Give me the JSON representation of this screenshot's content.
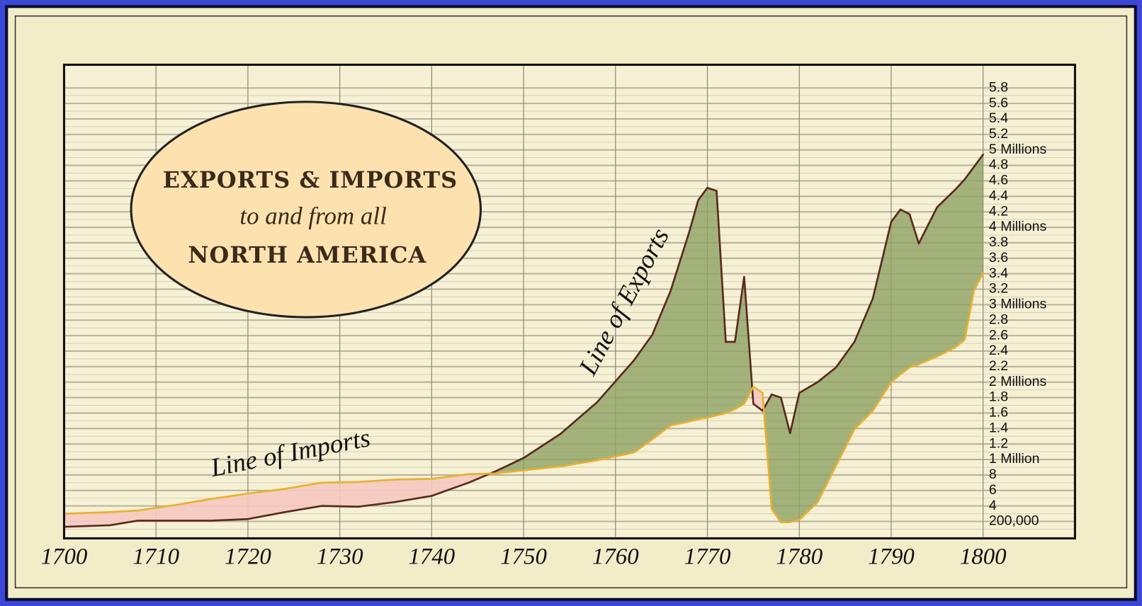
{
  "chart_data": {
    "type": "line",
    "title": [
      "EXPORTS & IMPORTS",
      "to and from all",
      "NORTH AMERICA"
    ],
    "x": [
      1700,
      1705,
      1708,
      1712,
      1716,
      1720,
      1724,
      1728,
      1732,
      1736,
      1740,
      1744,
      1747,
      1750,
      1754,
      1758,
      1762,
      1764,
      1766,
      1768,
      1769,
      1770,
      1771,
      1772,
      1773,
      1774,
      1775,
      1776,
      1777,
      1778,
      1779,
      1780,
      1782,
      1784,
      1786,
      1788,
      1790,
      1791,
      1792,
      1793,
      1795,
      1797,
      1798,
      1799,
      1800
    ],
    "series": [
      {
        "name": "Line of Exports",
        "color": "#5a2a1e",
        "values": [
          0.13,
          0.15,
          0.21,
          0.21,
          0.21,
          0.23,
          0.32,
          0.4,
          0.39,
          0.45,
          0.53,
          0.7,
          0.85,
          1.02,
          1.33,
          1.74,
          2.28,
          2.61,
          3.18,
          3.93,
          4.35,
          4.51,
          4.47,
          2.52,
          2.52,
          3.36,
          1.72,
          1.63,
          1.84,
          1.8,
          1.34,
          1.86,
          2.0,
          2.19,
          2.52,
          3.08,
          4.07,
          4.23,
          4.17,
          3.79,
          4.26,
          4.49,
          4.62,
          4.78,
          4.94
        ]
      },
      {
        "name": "Line of Imports",
        "color": "#e8b030",
        "values": [
          0.3,
          0.32,
          0.34,
          0.41,
          0.49,
          0.56,
          0.62,
          0.7,
          0.71,
          0.74,
          0.75,
          0.81,
          0.82,
          0.86,
          0.91,
          0.99,
          1.09,
          1.26,
          1.44,
          1.49,
          1.52,
          1.54,
          1.57,
          1.6,
          1.65,
          1.72,
          1.94,
          1.86,
          0.36,
          0.19,
          0.19,
          0.22,
          0.45,
          0.92,
          1.39,
          1.63,
          2.0,
          2.1,
          2.19,
          2.23,
          2.33,
          2.45,
          2.55,
          3.18,
          3.41
        ]
      }
    ],
    "balance_colors": {
      "exports_above": "#8fa263",
      "imports_above": "#f6c9c0"
    },
    "xlim": [
      1700,
      1810
    ],
    "xticks": [
      1700,
      1710,
      1720,
      1730,
      1740,
      1750,
      1760,
      1770,
      1780,
      1790,
      1800
    ],
    "ylim": [
      0,
      6.1
    ],
    "yticks": [
      {
        "value": 0.2,
        "label": "200,000"
      },
      {
        "value": 0.4,
        "label": "4"
      },
      {
        "value": 0.6,
        "label": "6"
      },
      {
        "value": 0.8,
        "label": "8"
      },
      {
        "value": 1,
        "label": "1 Million"
      },
      1.2,
      1.4,
      1.6,
      1.8,
      {
        "value": 2,
        "label": "2 Millions"
      },
      2.2,
      2.4,
      2.6,
      2.8,
      {
        "value": 3,
        "label": "3 Millions"
      },
      3.2,
      3.4,
      3.6,
      3.8,
      {
        "value": 4,
        "label": "4 Millions"
      },
      4.2,
      4.4,
      4.6,
      4.8,
      {
        "value": 5,
        "label": "5 Millions"
      },
      5.2,
      5.4,
      5.6,
      5.8
    ],
    "grid": true
  }
}
